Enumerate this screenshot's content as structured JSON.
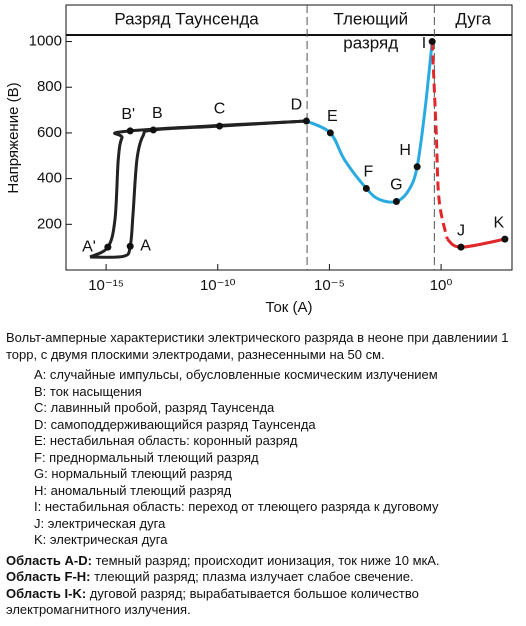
{
  "chart_data": {
    "type": "line",
    "x_label": "Ток (А)",
    "y_label": "Напряжение (В)",
    "xscale": "log",
    "xlim": [
      1.6e-17,
      1500
    ],
    "ylim": [
      0,
      1160
    ],
    "xticks": [
      {
        "value": 1e-15,
        "label": "10⁻¹⁵"
      },
      {
        "value": 1e-10,
        "label": "10⁻¹⁰"
      },
      {
        "value": 1e-05,
        "label": "10⁻⁵"
      },
      {
        "value": 1,
        "label": "10⁰"
      }
    ],
    "yticks": [
      200,
      400,
      600,
      800,
      1000
    ],
    "boundaries": [
      1e-06,
      0.5
    ],
    "regions": [
      [
        "Разряд Таунсенда"
      ],
      [
        "Тлеющий",
        "разряд"
      ],
      [
        "Дуга"
      ]
    ],
    "series": [
      {
        "color": "#222222",
        "dash": false,
        "x": [
          1.9e-16,
          1.2e-15,
          2.5e-15,
          3.5e-15,
          5.1e-15,
          1.2e-14,
          9.3e-07
        ],
        "values": [
          57,
          100,
          222,
          483,
          578,
          609,
          652
        ]
      },
      {
        "color": "#222222",
        "dash": false,
        "x": [
          1.9e-16,
          6e-15,
          1.2e-14,
          1.6e-14,
          2.4e-14,
          4.5e-14,
          1.3e-13,
          1.2e-10,
          9.3e-07
        ],
        "values": [
          57,
          60,
          104,
          243,
          483,
          587,
          613,
          630,
          652
        ]
      },
      {
        "color": "#29abe2",
        "dash": false,
        "x": [
          9.3e-07,
          1.1e-05,
          4.7e-05,
          0.00045,
          0.0017,
          0.01,
          0.037,
          0.085,
          0.19,
          0.4
        ],
        "values": [
          652,
          600,
          483,
          357,
          309,
          300,
          352,
          452,
          700,
          1000
        ]
      },
      {
        "color": "#e0282a",
        "dash": true,
        "x": [
          0.4,
          0.6,
          0.81,
          1.9
        ],
        "values": [
          1000,
          613,
          309,
          135
        ]
      },
      {
        "color": "#e0282a",
        "dash": false,
        "x": [
          1.9,
          7.8,
          720
        ],
        "values": [
          135,
          100,
          135
        ]
      }
    ],
    "points": [
      {
        "label": "A'",
        "x": 1.2e-15,
        "y": 100
      },
      {
        "label": "A",
        "x": 1.2e-14,
        "y": 104
      },
      {
        "label": "B'",
        "x": 1.2e-14,
        "y": 609
      },
      {
        "label": "B",
        "x": 1.3e-13,
        "y": 613
      },
      {
        "label": "C",
        "x": 1.2e-10,
        "y": 630
      },
      {
        "label": "D",
        "x": 9.3e-07,
        "y": 652
      },
      {
        "label": "E",
        "x": 1.1e-05,
        "y": 600
      },
      {
        "label": "F",
        "x": 0.00045,
        "y": 357
      },
      {
        "label": "G",
        "x": 0.01,
        "y": 300
      },
      {
        "label": "H",
        "x": 0.085,
        "y": 452
      },
      {
        "label": "I",
        "x": 0.4,
        "y": 1000
      },
      {
        "label": "J",
        "x": 7.8,
        "y": 100
      },
      {
        "label": "K",
        "x": 720,
        "y": 135
      }
    ]
  },
  "caption": {
    "intro": "Вольт-амперные характеристики электрического разряда в неоне при давлениии 1 торр, с двумя плоскими электродами, разнесенными на 50 см.",
    "legend": [
      "A: случайные импульсы, обусловленные космическим излучением",
      "B: ток насыщения",
      "C: лавинный пробой, разряд Таунсенда",
      "D: самоподдерживающийся разряд Таунсенда",
      "E: нестабильная область: коронный разряд",
      "F: преднормальный тлеющий разряд",
      "G: нормальный тлеющий разряд",
      "H: аномальный тлеющий разряд",
      "I: нестабильная область: переход от тлеющего разряда к дуговому",
      "J: электрическая дуга",
      "K: электрическая дуга"
    ],
    "notes": [
      {
        "term": "Область A-D:",
        "text": "темный разряд; происходит ионизация, ток ниже 10 мкА."
      },
      {
        "term": "Область F-H:",
        "text": "тлеющий разряд; плазма излучает слабое свечение."
      },
      {
        "term": "Область I-K:",
        "text": "дуговой разряд; вырабатывается большое количество электромагнитного излучения."
      }
    ]
  }
}
